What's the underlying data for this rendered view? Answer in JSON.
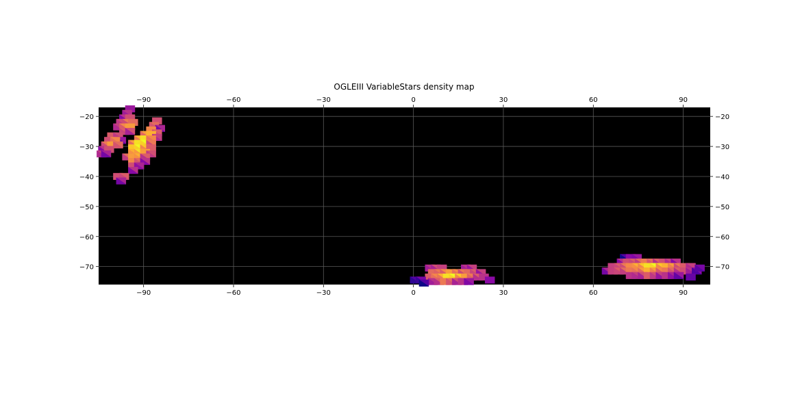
{
  "chart_data": {
    "type": "heatmap",
    "title": "OGLEIII VariableStars density map",
    "xlabel": "",
    "ylabel": "",
    "xlim": [
      -105,
      99
    ],
    "ylim": [
      -76,
      -17
    ],
    "x_ticks": [
      -90,
      -60,
      -30,
      0,
      30,
      60,
      90
    ],
    "y_ticks": [
      -20,
      -30,
      -40,
      -50,
      -60,
      -70
    ],
    "grid": true,
    "background_color": "#000000",
    "colormap": "plasma",
    "regions": [
      {
        "cells": [
          [
            -94.5,
            -17.5,
            0.35
          ],
          [
            -95.5,
            -19,
            0.45
          ],
          [
            -96.5,
            -20.5,
            0.45
          ],
          [
            -94.5,
            -20.5,
            0.55
          ],
          [
            -97.5,
            -22,
            0.55
          ],
          [
            -95.5,
            -22,
            0.7
          ],
          [
            -93.5,
            -22,
            0.65
          ],
          [
            -98.5,
            -23.5,
            0.5
          ],
          [
            -96.5,
            -23.5,
            0.75
          ],
          [
            -94.5,
            -23.5,
            0.8
          ],
          [
            -96.5,
            -25,
            0.6
          ],
          [
            -94.5,
            -25,
            0.55
          ],
          [
            -100.5,
            -26.5,
            0.6
          ],
          [
            -98.5,
            -26.5,
            0.55
          ],
          [
            -97.5,
            -28,
            0.35
          ],
          [
            -101.5,
            -28,
            0.55
          ],
          [
            -99.5,
            -28,
            0.75
          ],
          [
            -102.5,
            -29.5,
            0.7
          ],
          [
            -100.5,
            -29.5,
            0.8
          ],
          [
            -98.5,
            -29.5,
            0.65
          ],
          [
            -103.5,
            -31,
            0.45
          ],
          [
            -101.5,
            -31,
            0.55
          ],
          [
            -104,
            -32.5,
            0.5
          ],
          [
            -102.5,
            -32.5,
            0.4
          ],
          [
            -85.5,
            -21.5,
            0.55
          ],
          [
            -86.5,
            -23,
            0.65
          ],
          [
            -84.5,
            -24,
            0.4
          ],
          [
            -87.5,
            -24.5,
            0.75
          ],
          [
            -85.5,
            -25.5,
            0.6
          ],
          [
            -89.5,
            -26,
            0.8
          ],
          [
            -87.5,
            -26,
            0.85
          ],
          [
            -85.5,
            -27,
            0.5
          ],
          [
            -91.5,
            -27.5,
            0.85
          ],
          [
            -89.5,
            -27.5,
            0.95
          ],
          [
            -87.5,
            -27.5,
            0.75
          ],
          [
            -93.5,
            -29,
            0.8
          ],
          [
            -91.5,
            -29,
            0.95
          ],
          [
            -89.5,
            -29,
            1.0
          ],
          [
            -87.5,
            -29,
            0.7
          ],
          [
            -93.5,
            -30.5,
            0.9
          ],
          [
            -91.5,
            -30.5,
            1.0
          ],
          [
            -89.5,
            -30.5,
            0.9
          ],
          [
            -87.5,
            -30.5,
            0.6
          ],
          [
            -93.5,
            -32,
            0.85
          ],
          [
            -91.5,
            -32,
            0.95
          ],
          [
            -89.5,
            -32,
            0.8
          ],
          [
            -87.5,
            -32.5,
            0.55
          ],
          [
            -95.5,
            -33.5,
            0.65
          ],
          [
            -93.5,
            -33.5,
            0.8
          ],
          [
            -91.5,
            -33.5,
            0.85
          ],
          [
            -89.5,
            -33.5,
            0.6
          ],
          [
            -93.5,
            -35,
            0.75
          ],
          [
            -91.5,
            -35,
            0.65
          ],
          [
            -89.5,
            -35,
            0.45
          ],
          [
            -93.5,
            -36.5,
            0.55
          ],
          [
            -91.5,
            -36.5,
            0.4
          ],
          [
            -93.5,
            -38,
            0.45
          ],
          [
            -98.5,
            -40,
            0.55
          ],
          [
            -96.5,
            -40,
            0.6
          ],
          [
            -97.5,
            -41.5,
            0.4
          ]
        ]
      },
      {
        "cells": [
          [
            5.5,
            -70.5,
            0.45
          ],
          [
            7.5,
            -70.5,
            0.55
          ],
          [
            9.5,
            -70.5,
            0.5
          ],
          [
            17.5,
            -70.5,
            0.45
          ],
          [
            19.5,
            -70.5,
            0.5
          ],
          [
            6.5,
            -72,
            0.65
          ],
          [
            8.5,
            -72,
            0.7
          ],
          [
            10.5,
            -72,
            0.75
          ],
          [
            12.5,
            -72,
            0.8
          ],
          [
            14.5,
            -72,
            0.75
          ],
          [
            16.5,
            -72,
            0.7
          ],
          [
            18.5,
            -72,
            0.65
          ],
          [
            20.5,
            -72,
            0.6
          ],
          [
            22.5,
            -72,
            0.5
          ],
          [
            5.5,
            -73.5,
            0.6
          ],
          [
            7.5,
            -73.5,
            0.75
          ],
          [
            9.5,
            -73.5,
            0.85
          ],
          [
            11.5,
            -73.5,
            0.95
          ],
          [
            13.5,
            -73.5,
            1.0
          ],
          [
            15.5,
            -73.5,
            0.9
          ],
          [
            17.5,
            -73.5,
            0.8
          ],
          [
            19.5,
            -73.5,
            0.7
          ],
          [
            21.5,
            -73.5,
            0.6
          ],
          [
            23.5,
            -73.5,
            0.45
          ],
          [
            0.5,
            -74.5,
            0.15
          ],
          [
            2.5,
            -74.5,
            0.25
          ],
          [
            25.5,
            -74.5,
            0.3
          ],
          [
            6.5,
            -75,
            0.45
          ],
          [
            8.5,
            -75,
            0.6
          ],
          [
            10.5,
            -75,
            0.7
          ],
          [
            12.5,
            -75,
            0.65
          ],
          [
            14.5,
            -75,
            0.55
          ],
          [
            16.5,
            -75,
            0.45
          ],
          [
            18.5,
            -75,
            0.35
          ],
          [
            3.5,
            -75.5,
            0.15
          ]
        ]
      },
      {
        "cells": [
          [
            70.5,
            -67,
            0.15
          ],
          [
            72.5,
            -67,
            0.3
          ],
          [
            74.5,
            -67,
            0.35
          ],
          [
            69.5,
            -68.5,
            0.45
          ],
          [
            71.5,
            -68.5,
            0.55
          ],
          [
            73.5,
            -68.5,
            0.6
          ],
          [
            75.5,
            -68.5,
            0.65
          ],
          [
            77.5,
            -68.5,
            0.7
          ],
          [
            79.5,
            -68.5,
            0.65
          ],
          [
            81.5,
            -68.5,
            0.6
          ],
          [
            83.5,
            -68.5,
            0.55
          ],
          [
            85.5,
            -68.5,
            0.5
          ],
          [
            87.5,
            -68.5,
            0.45
          ],
          [
            66.5,
            -70,
            0.5
          ],
          [
            68.5,
            -70,
            0.6
          ],
          [
            70.5,
            -70,
            0.7
          ],
          [
            72.5,
            -70,
            0.75
          ],
          [
            74.5,
            -70,
            0.85
          ],
          [
            76.5,
            -70,
            0.9
          ],
          [
            78.5,
            -70,
            0.95
          ],
          [
            80.5,
            -70,
            1.0
          ],
          [
            82.5,
            -70,
            0.9
          ],
          [
            84.5,
            -70,
            0.85
          ],
          [
            86.5,
            -70,
            0.8
          ],
          [
            88.5,
            -70,
            0.7
          ],
          [
            90.5,
            -70,
            0.6
          ],
          [
            92.5,
            -70,
            0.5
          ],
          [
            64.5,
            -71.5,
            0.4
          ],
          [
            66.5,
            -71.5,
            0.5
          ],
          [
            68.5,
            -71.5,
            0.6
          ],
          [
            70.5,
            -71.5,
            0.65
          ],
          [
            72.5,
            -71.5,
            0.7
          ],
          [
            74.5,
            -71.5,
            0.75
          ],
          [
            76.5,
            -71.5,
            0.8
          ],
          [
            78.5,
            -71.5,
            0.85
          ],
          [
            80.5,
            -71.5,
            0.8
          ],
          [
            82.5,
            -71.5,
            0.75
          ],
          [
            84.5,
            -71.5,
            0.7
          ],
          [
            86.5,
            -71.5,
            0.65
          ],
          [
            88.5,
            -71.5,
            0.6
          ],
          [
            90.5,
            -71.5,
            0.55
          ],
          [
            92.5,
            -71.5,
            0.45
          ],
          [
            94.5,
            -71.5,
            0.3
          ],
          [
            72.5,
            -73,
            0.45
          ],
          [
            74.5,
            -73,
            0.5
          ],
          [
            76.5,
            -73,
            0.55
          ],
          [
            78.5,
            -73,
            0.6
          ],
          [
            80.5,
            -73,
            0.55
          ],
          [
            82.5,
            -73,
            0.5
          ],
          [
            84.5,
            -73,
            0.45
          ],
          [
            86.5,
            -73,
            0.4
          ],
          [
            88.5,
            -73,
            0.35
          ],
          [
            92.5,
            -73.5,
            0.2
          ],
          [
            95.5,
            -70.5,
            0.25
          ]
        ]
      }
    ]
  }
}
